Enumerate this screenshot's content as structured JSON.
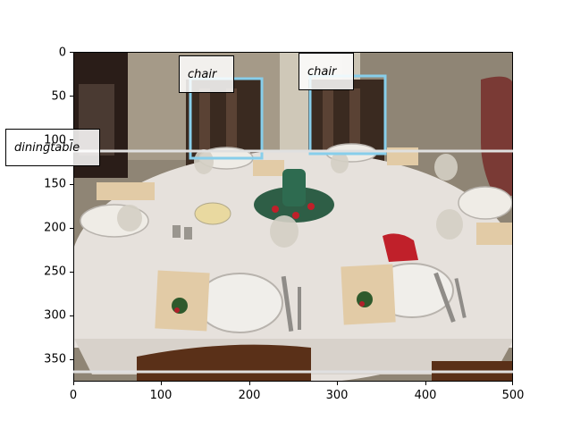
{
  "axes": {
    "x_ticks": [
      "0",
      "100",
      "200",
      "300",
      "400",
      "500"
    ],
    "y_ticks": [
      "0",
      "50",
      "100",
      "150",
      "200",
      "250",
      "300",
      "350"
    ]
  },
  "detections": [
    {
      "label": "chair",
      "color": "#87ceeb"
    },
    {
      "label": "chair",
      "color": "#87ceeb"
    },
    {
      "label": "diningtable",
      "color": "#e0e0e0"
    }
  ],
  "colors": {
    "wall": "#8a7f6f",
    "tablecloth": "#e6e1dc",
    "chair_wood": "#3a2a20",
    "centerpiece_green": "#2e5e46",
    "ribbon_red": "#c0202a"
  }
}
